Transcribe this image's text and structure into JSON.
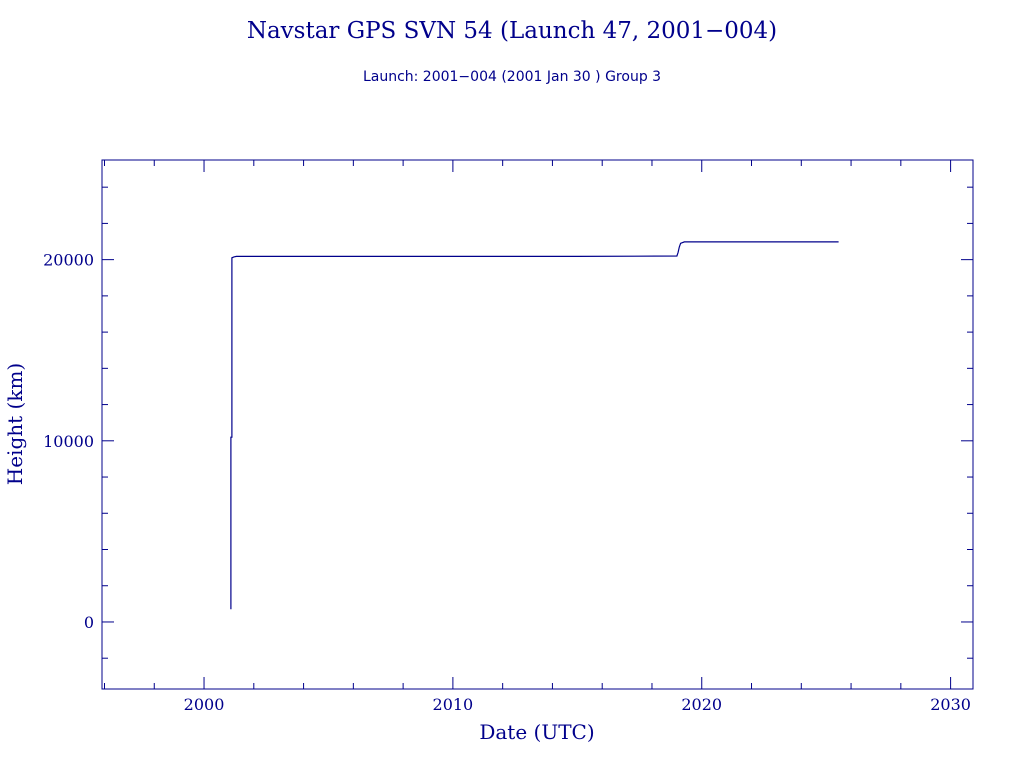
{
  "chart_data": {
    "type": "line",
    "title": "Navstar GPS SVN 54 (Launch 47, 2001−004)",
    "subtitle": "Launch: 2001−004  (2001 Jan 30 )  Group 3",
    "xlabel": "Date (UTC)",
    "ylabel": "Height (km)",
    "xlim": [
      1995.9,
      2030.9
    ],
    "ylim": [
      -3700,
      25500
    ],
    "xticks": [
      2000,
      2010,
      2020,
      2030
    ],
    "xtick_labels": [
      "2000",
      "2010",
      "2020",
      "2030"
    ],
    "yticks": [
      0,
      10000,
      20000
    ],
    "ytick_labels": [
      "0",
      "10000",
      "20000"
    ],
    "grid": false,
    "legend": "none",
    "color": "#00008b",
    "series": [
      {
        "x": [
          2001.08,
          2001.08,
          2001.12,
          2001.12,
          2001.2,
          2001.3,
          2001.5,
          2005.0,
          2010.0,
          2015.0,
          2019.0,
          2019.05,
          2019.1,
          2019.15,
          2019.3,
          2020.0,
          2025.5
        ],
        "y": [
          700,
          10200,
          10200,
          20100,
          20150,
          20180,
          20180,
          20180,
          20180,
          20180,
          20200,
          20400,
          20700,
          20900,
          20980,
          20980,
          20980
        ]
      }
    ]
  }
}
